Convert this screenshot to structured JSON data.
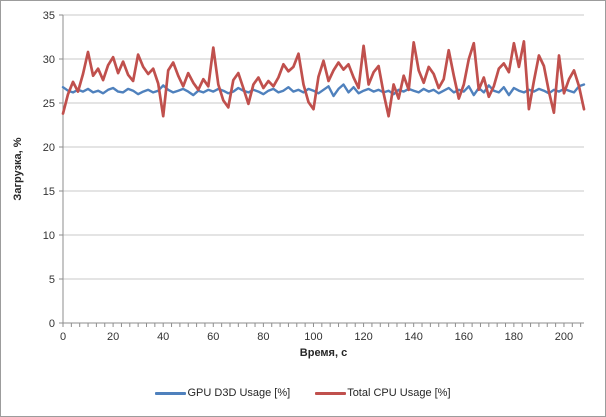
{
  "chart_data": {
    "type": "line",
    "title": "",
    "xlabel": "Время, с",
    "ylabel": "Загрузка, %",
    "xlim": [
      0,
      208
    ],
    "ylim": [
      0,
      35
    ],
    "x_ticks": [
      0,
      20,
      40,
      60,
      80,
      100,
      120,
      140,
      160,
      180,
      200
    ],
    "y_ticks": [
      0,
      5,
      10,
      15,
      20,
      25,
      30,
      35
    ],
    "grid": "horizontal",
    "legend_position": "bottom",
    "x": [
      0,
      2,
      4,
      6,
      8,
      10,
      12,
      14,
      16,
      18,
      20,
      22,
      24,
      26,
      28,
      30,
      32,
      34,
      36,
      38,
      40,
      42,
      44,
      46,
      48,
      50,
      52,
      54,
      56,
      58,
      60,
      62,
      64,
      66,
      68,
      70,
      72,
      74,
      76,
      78,
      80,
      82,
      84,
      86,
      88,
      90,
      92,
      94,
      96,
      98,
      100,
      102,
      104,
      106,
      108,
      110,
      112,
      114,
      116,
      118,
      120,
      122,
      124,
      126,
      128,
      130,
      132,
      134,
      136,
      138,
      140,
      142,
      144,
      146,
      148,
      150,
      152,
      154,
      156,
      158,
      160,
      162,
      164,
      166,
      168,
      170,
      172,
      174,
      176,
      178,
      180,
      182,
      184,
      186,
      188,
      190,
      192,
      194,
      196,
      198,
      200,
      202,
      204,
      206,
      208
    ],
    "series": [
      {
        "name": "GPU D3D Usage [%]",
        "color": "#4F81BD",
        "values": [
          26.8,
          26.4,
          26.2,
          26.5,
          26.3,
          26.6,
          26.2,
          26.4,
          26.1,
          26.5,
          26.7,
          26.3,
          26.2,
          26.6,
          26.4,
          26.0,
          26.3,
          26.5,
          26.2,
          26.4,
          27.0,
          26.5,
          26.2,
          26.4,
          26.6,
          26.3,
          25.9,
          26.4,
          26.2,
          26.5,
          26.3,
          26.6,
          26.4,
          26.1,
          26.3,
          26.7,
          26.4,
          26.2,
          26.5,
          26.3,
          26.0,
          26.4,
          26.6,
          26.2,
          26.4,
          26.8,
          26.3,
          26.5,
          26.2,
          26.6,
          26.4,
          26.1,
          26.5,
          26.9,
          25.8,
          26.6,
          27.1,
          26.2,
          26.8,
          26.1,
          26.4,
          26.6,
          26.3,
          26.5,
          26.2,
          26.4,
          26.0,
          26.5,
          26.3,
          26.6,
          26.4,
          26.2,
          26.6,
          26.3,
          26.5,
          26.1,
          26.4,
          26.7,
          26.2,
          26.5,
          26.3,
          26.9,
          25.9,
          26.7,
          26.2,
          27.0,
          26.4,
          26.2,
          26.8,
          25.9,
          26.7,
          26.4,
          26.2,
          26.5,
          26.3,
          26.6,
          26.4,
          26.1,
          26.5,
          26.3,
          26.6,
          26.4,
          26.2,
          26.9,
          27.1
        ]
      },
      {
        "name": "Total CPU Usage [%]",
        "color": "#C0504D",
        "values": [
          23.8,
          26.0,
          27.4,
          26.3,
          28.3,
          30.8,
          28.1,
          28.9,
          27.6,
          29.3,
          30.2,
          28.4,
          29.7,
          28.2,
          27.5,
          30.5,
          29.1,
          28.3,
          28.9,
          27.2,
          23.5,
          28.7,
          29.6,
          28.1,
          26.9,
          28.4,
          27.3,
          26.5,
          27.7,
          26.9,
          31.3,
          27.1,
          25.3,
          24.5,
          27.6,
          28.4,
          26.7,
          24.9,
          27.1,
          27.9,
          26.7,
          27.5,
          26.9,
          27.9,
          29.4,
          28.6,
          29.1,
          30.6,
          27.1,
          25.1,
          24.3,
          28.0,
          29.8,
          27.5,
          28.7,
          29.6,
          28.8,
          29.4,
          27.9,
          26.7,
          31.5,
          27.1,
          28.5,
          29.2,
          26.1,
          23.5,
          27.1,
          25.5,
          28.1,
          26.5,
          31.9,
          28.7,
          27.3,
          29.1,
          28.3,
          26.7,
          27.7,
          31.0,
          28.1,
          25.5,
          27.1,
          30.0,
          31.8,
          26.5,
          27.9,
          25.7,
          26.9,
          28.9,
          29.5,
          28.5,
          31.8,
          29.1,
          32.0,
          24.3,
          27.5,
          30.4,
          29.2,
          26.3,
          23.9,
          30.4,
          26.1,
          27.7,
          28.7,
          26.9,
          24.3
        ]
      }
    ],
    "colors": {
      "gridline": "#c8c8c8",
      "axis": "#8e8e8e",
      "tick_label": "#333333",
      "frame_border": "#9c9c9c",
      "background": "#ffffff"
    }
  }
}
